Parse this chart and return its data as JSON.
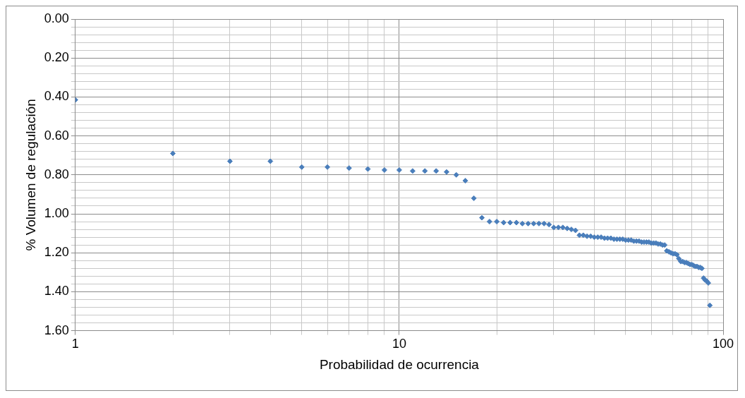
{
  "chart_data": {
    "type": "scatter",
    "xlabel": "Probabilidad de ocurrencia",
    "ylabel": "% Volumen de regulación",
    "log": "x",
    "grid": true,
    "marker": "diamond",
    "xlim": [
      1,
      100
    ],
    "xticks": [
      1,
      {
        "value": 2,
        "label": null
      },
      {
        "value": 3,
        "label": null
      },
      {
        "value": 4,
        "label": null
      },
      {
        "value": 5,
        "label": null
      },
      {
        "value": 6,
        "label": null
      },
      {
        "value": 7,
        "label": null
      },
      {
        "value": 8,
        "label": null
      },
      {
        "value": 9,
        "label": null
      },
      10,
      {
        "value": 20,
        "label": null
      },
      {
        "value": 30,
        "label": null
      },
      {
        "value": 40,
        "label": null
      },
      {
        "value": 50,
        "label": null
      },
      {
        "value": 60,
        "label": null
      },
      {
        "value": 70,
        "label": null
      },
      {
        "value": 80,
        "label": null
      },
      {
        "value": 90,
        "label": null
      },
      100
    ],
    "ylim": [
      1.6,
      0
    ],
    "yticks": [
      {
        "value": 0,
        "label": "0.00"
      },
      {
        "value": 0.04,
        "label": null
      },
      {
        "value": 0.08,
        "label": null
      },
      {
        "value": 0.12,
        "label": null
      },
      {
        "value": 0.16,
        "label": null
      },
      {
        "value": 0.2,
        "label": "0.20"
      },
      {
        "value": 0.24,
        "label": null
      },
      {
        "value": 0.28,
        "label": null
      },
      {
        "value": 0.32,
        "label": null
      },
      {
        "value": 0.36,
        "label": null
      },
      {
        "value": 0.4,
        "label": "0.40"
      },
      {
        "value": 0.44,
        "label": null
      },
      {
        "value": 0.48,
        "label": null
      },
      {
        "value": 0.52,
        "label": null
      },
      {
        "value": 0.56,
        "label": null
      },
      {
        "value": 0.6,
        "label": "0.60"
      },
      {
        "value": 0.64,
        "label": null
      },
      {
        "value": 0.68,
        "label": null
      },
      {
        "value": 0.72,
        "label": null
      },
      {
        "value": 0.76,
        "label": null
      },
      {
        "value": 0.8,
        "label": "0.80"
      },
      {
        "value": 0.84,
        "label": null
      },
      {
        "value": 0.88,
        "label": null
      },
      {
        "value": 0.92,
        "label": null
      },
      {
        "value": 0.96,
        "label": null
      },
      {
        "value": 1,
        "label": "1.00"
      },
      {
        "value": 1.04,
        "label": null
      },
      {
        "value": 1.08,
        "label": null
      },
      {
        "value": 1.12,
        "label": null
      },
      {
        "value": 1.16,
        "label": null
      },
      {
        "value": 1.2,
        "label": "1.20"
      },
      {
        "value": 1.24,
        "label": null
      },
      {
        "value": 1.28,
        "label": null
      },
      {
        "value": 1.32,
        "label": null
      },
      {
        "value": 1.36,
        "label": null
      },
      {
        "value": 1.4,
        "label": "1.40"
      },
      {
        "value": 1.44,
        "label": null
      },
      {
        "value": 1.48,
        "label": null
      },
      {
        "value": 1.52,
        "label": null
      },
      {
        "value": 1.56,
        "label": null
      },
      {
        "value": 1.6,
        "label": "1.60"
      }
    ],
    "series": [
      {
        "color": "#4a7ebb",
        "x": [
          1,
          2,
          3,
          4,
          5,
          6,
          7,
          8,
          9,
          10,
          11,
          12,
          13,
          14,
          15,
          16,
          17,
          18,
          19,
          20,
          21,
          22,
          23,
          24,
          25,
          26,
          27,
          28,
          29,
          30,
          31,
          32,
          33,
          34,
          35,
          36,
          37,
          38,
          39,
          40,
          41,
          42,
          43,
          44,
          45,
          46,
          47,
          48,
          49,
          50,
          51,
          52,
          53,
          54,
          55,
          56,
          57,
          58,
          59,
          60,
          61,
          62,
          63,
          64,
          65,
          66,
          67,
          68,
          69,
          70,
          71,
          72,
          73,
          74,
          75,
          76,
          77,
          78,
          79,
          80,
          81,
          82,
          83,
          84,
          85,
          86,
          87,
          88,
          89,
          90,
          91
        ],
        "values": [
          0.415,
          0.69,
          0.73,
          0.73,
          0.76,
          0.76,
          0.765,
          0.77,
          0.775,
          0.775,
          0.78,
          0.78,
          0.78,
          0.785,
          0.8,
          0.83,
          0.92,
          1.02,
          1.04,
          1.04,
          1.045,
          1.045,
          1.045,
          1.05,
          1.05,
          1.05,
          1.05,
          1.05,
          1.055,
          1.07,
          1.07,
          1.07,
          1.075,
          1.08,
          1.085,
          1.11,
          1.11,
          1.115,
          1.115,
          1.12,
          1.12,
          1.12,
          1.125,
          1.125,
          1.125,
          1.13,
          1.13,
          1.13,
          1.13,
          1.135,
          1.135,
          1.135,
          1.14,
          1.14,
          1.14,
          1.145,
          1.145,
          1.145,
          1.145,
          1.15,
          1.15,
          1.15,
          1.155,
          1.155,
          1.16,
          1.16,
          1.19,
          1.195,
          1.2,
          1.205,
          1.205,
          1.21,
          1.23,
          1.245,
          1.245,
          1.25,
          1.25,
          1.255,
          1.26,
          1.26,
          1.265,
          1.27,
          1.27,
          1.275,
          1.275,
          1.28,
          1.33,
          1.34,
          1.345,
          1.355,
          1.47
        ]
      }
    ]
  }
}
